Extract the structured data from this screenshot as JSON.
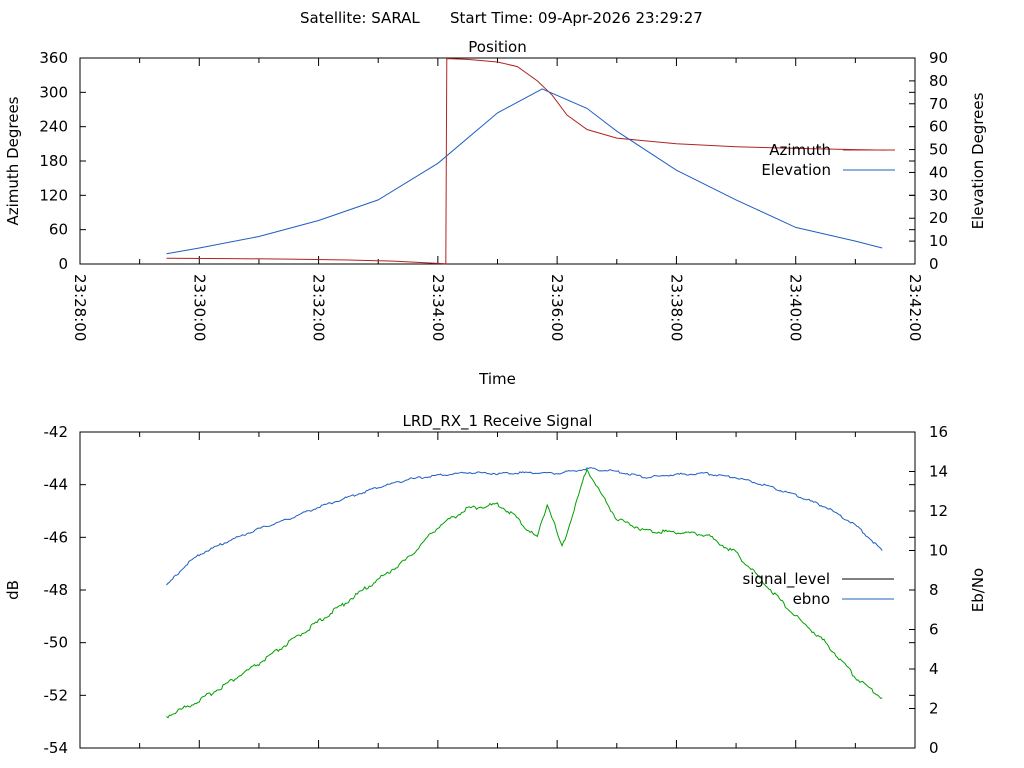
{
  "header": {
    "satellite_text": "Satellite: SARAL",
    "start_time_text": "Start Time: 09-Apr-2026 23:29:27"
  },
  "colors": {
    "azimuth": "#b22222",
    "elevation": "#1f5fbf",
    "signal_level": "#00a000",
    "ebno": "#1f5fbf",
    "signal_legend_swatch": "#000000"
  },
  "chart_data": [
    {
      "type": "line",
      "title": "Position",
      "xlabel": "Time",
      "ylabel": "Azimuth Degrees",
      "y2label": "Elevation Degrees",
      "xlim": [
        "23:28:00",
        "23:42:00"
      ],
      "x_ticks": [
        "23:28:00",
        "23:30:00",
        "23:32:00",
        "23:34:00",
        "23:36:00",
        "23:38:00",
        "23:40:00",
        "23:42:00"
      ],
      "ylim": [
        0,
        360
      ],
      "y_ticks": [
        0,
        60,
        120,
        180,
        240,
        300,
        360
      ],
      "y2lim": [
        0,
        90
      ],
      "y2_ticks": [
        0,
        10,
        20,
        30,
        40,
        50,
        60,
        70,
        80,
        90
      ],
      "grid": false,
      "legend_position": "right",
      "series": [
        {
          "name": "Azimuth",
          "axis": "y",
          "points": [
            [
              "23:29:27",
              10
            ],
            [
              "23:30:30",
              9.5
            ],
            [
              "23:31:30",
              8.5
            ],
            [
              "23:32:30",
              7
            ],
            [
              "23:33:15",
              5
            ],
            [
              "23:33:45",
              2.5
            ],
            [
              "23:34:08",
              0.5
            ],
            [
              "23:34:09",
              359
            ],
            [
              "23:34:30",
              357.5
            ],
            [
              "23:35:00",
              353
            ],
            [
              "23:35:20",
              345
            ],
            [
              "23:35:40",
              320
            ],
            [
              "23:35:55",
              295
            ],
            [
              "23:36:10",
              260
            ],
            [
              "23:36:30",
              235
            ],
            [
              "23:37:00",
              220
            ],
            [
              "23:38:00",
              210
            ],
            [
              "23:39:00",
              205
            ],
            [
              "23:40:00",
              202
            ],
            [
              "23:41:00",
              200
            ],
            [
              "23:41:30",
              199
            ]
          ]
        },
        {
          "name": "Elevation",
          "axis": "y2",
          "points": [
            [
              "23:29:27",
              4.5
            ],
            [
              "23:30:00",
              7
            ],
            [
              "23:31:00",
              12
            ],
            [
              "23:32:00",
              19
            ],
            [
              "23:33:00",
              28
            ],
            [
              "23:34:00",
              44
            ],
            [
              "23:35:00",
              66
            ],
            [
              "23:35:45",
              76.5
            ],
            [
              "23:36:30",
              68
            ],
            [
              "23:37:00",
              58
            ],
            [
              "23:38:00",
              41
            ],
            [
              "23:39:00",
              28
            ],
            [
              "23:40:00",
              16
            ],
            [
              "23:41:00",
              10
            ],
            [
              "23:41:27",
              7
            ]
          ]
        }
      ]
    },
    {
      "type": "line",
      "title": "LRD_RX_1 Receive Signal",
      "xlabel": "",
      "ylabel": "dB",
      "y2label": "Eb/No",
      "xlim": [
        "23:28:00",
        "23:42:00"
      ],
      "ylim": [
        -54,
        -42
      ],
      "y_ticks": [
        -54,
        -52,
        -50,
        -48,
        -46,
        -44,
        -42
      ],
      "y2lim": [
        0,
        16
      ],
      "y2_ticks": [
        0,
        2,
        4,
        6,
        8,
        10,
        12,
        14,
        16
      ],
      "grid": false,
      "legend_position": "right",
      "series": [
        {
          "name": "signal_level",
          "axis": "y",
          "points": [
            [
              "23:29:27",
              -52.8
            ],
            [
              "23:30:00",
              -52.2
            ],
            [
              "23:30:30",
              -51.5
            ],
            [
              "23:31:00",
              -50.8
            ],
            [
              "23:31:30",
              -50.0
            ],
            [
              "23:32:00",
              -49.2
            ],
            [
              "23:32:30",
              -48.4
            ],
            [
              "23:33:00",
              -47.6
            ],
            [
              "23:33:30",
              -46.8
            ],
            [
              "23:34:00",
              -45.6
            ],
            [
              "23:34:30",
              -44.9
            ],
            [
              "23:35:00",
              -44.75
            ],
            [
              "23:35:15",
              -45.1
            ],
            [
              "23:35:30",
              -45.7
            ],
            [
              "23:35:40",
              -46.0
            ],
            [
              "23:35:50",
              -44.7
            ],
            [
              "23:36:05",
              -46.4
            ],
            [
              "23:36:20",
              -44.6
            ],
            [
              "23:36:30",
              -43.4
            ],
            [
              "23:36:45",
              -44.4
            ],
            [
              "23:37:00",
              -45.3
            ],
            [
              "23:37:30",
              -45.75
            ],
            [
              "23:38:00",
              -45.8
            ],
            [
              "23:38:30",
              -45.9
            ],
            [
              "23:39:00",
              -46.6
            ],
            [
              "23:39:30",
              -47.8
            ],
            [
              "23:40:00",
              -49.0
            ],
            [
              "23:40:30",
              -50.0
            ],
            [
              "23:41:00",
              -51.3
            ],
            [
              "23:41:27",
              -52.1
            ]
          ]
        },
        {
          "name": "ebno",
          "axis": "y2",
          "points": [
            [
              "23:29:27",
              8.2
            ],
            [
              "23:29:45",
              9.2
            ],
            [
              "23:30:00",
              9.8
            ],
            [
              "23:30:30",
              10.5
            ],
            [
              "23:31:00",
              11.1
            ],
            [
              "23:31:30",
              11.6
            ],
            [
              "23:32:00",
              12.2
            ],
            [
              "23:32:30",
              12.7
            ],
            [
              "23:33:00",
              13.2
            ],
            [
              "23:33:30",
              13.6
            ],
            [
              "23:34:00",
              13.8
            ],
            [
              "23:34:30",
              13.95
            ],
            [
              "23:35:00",
              13.9
            ],
            [
              "23:35:30",
              13.95
            ],
            [
              "23:36:00",
              13.9
            ],
            [
              "23:36:30",
              14.15
            ],
            [
              "23:37:00",
              14.0
            ],
            [
              "23:37:30",
              13.7
            ],
            [
              "23:38:00",
              13.85
            ],
            [
              "23:38:30",
              13.9
            ],
            [
              "23:39:00",
              13.7
            ],
            [
              "23:39:30",
              13.3
            ],
            [
              "23:40:00",
              12.8
            ],
            [
              "23:40:30",
              12.2
            ],
            [
              "23:41:00",
              11.3
            ],
            [
              "23:41:27",
              10.0
            ]
          ]
        }
      ]
    }
  ]
}
